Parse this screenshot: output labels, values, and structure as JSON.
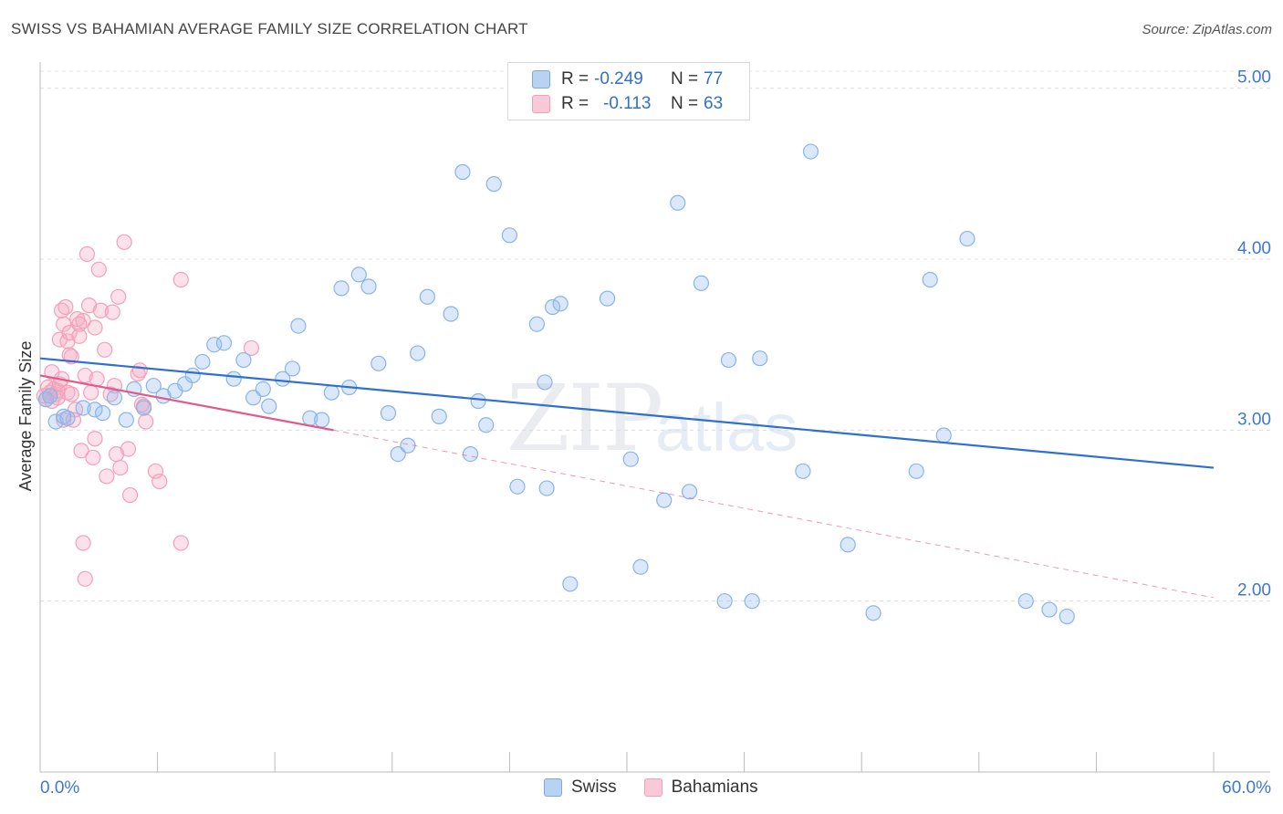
{
  "title": "SWISS VS BAHAMIAN AVERAGE FAMILY SIZE CORRELATION CHART",
  "source": "Source: ZipAtlas.com",
  "watermark": {
    "zip": "ZIP",
    "atlas": "atlas"
  },
  "legend": {
    "swiss": {
      "r_label": "R =",
      "r_value": "-0.249",
      "n_label": "N =",
      "n_value": "77"
    },
    "bahamians": {
      "r_label": "R =",
      "r_value": "-0.113",
      "n_label": "N =",
      "n_value": "63"
    }
  },
  "bottom_legend": {
    "swiss": "Swiss",
    "bahamians": "Bahamians"
  },
  "colors": {
    "swiss": "#8ab4e8",
    "swiss_line": "#2f6fd0",
    "bahamians": "#f2a0b8",
    "bahamians_line": "#e05a8a",
    "tick_label": "#3f78d0"
  },
  "chart_data": {
    "type": "scatter",
    "title": "SWISS VS BAHAMIAN AVERAGE FAMILY SIZE CORRELATION CHART",
    "xlabel": "",
    "ylabel": "Average Family Size",
    "xlim": [
      0,
      60
    ],
    "ylim": [
      1.0,
      5.1
    ],
    "x_tick_labels": [
      "0.0%",
      "60.0%"
    ],
    "y_ticks": [
      2.0,
      3.0,
      4.0,
      5.0
    ],
    "y_tick_labels": [
      "2.00",
      "3.00",
      "4.00",
      "5.00"
    ],
    "series": [
      {
        "name": "Swiss",
        "trend": {
          "x": [
            0,
            60
          ],
          "y": [
            3.42,
            2.78
          ]
        },
        "points": [
          [
            0.3,
            3.18
          ],
          [
            0.5,
            3.2
          ],
          [
            0.8,
            3.05
          ],
          [
            1.2,
            3.08
          ],
          [
            1.4,
            3.07
          ],
          [
            2.2,
            3.13
          ],
          [
            2.8,
            3.12
          ],
          [
            3.2,
            3.1
          ],
          [
            3.8,
            3.19
          ],
          [
            4.4,
            3.06
          ],
          [
            4.8,
            3.24
          ],
          [
            5.3,
            3.13
          ],
          [
            5.8,
            3.26
          ],
          [
            6.3,
            3.2
          ],
          [
            6.9,
            3.23
          ],
          [
            7.4,
            3.27
          ],
          [
            7.8,
            3.32
          ],
          [
            8.3,
            3.4
          ],
          [
            8.9,
            3.5
          ],
          [
            9.4,
            3.51
          ],
          [
            9.9,
            3.3
          ],
          [
            10.4,
            3.41
          ],
          [
            10.9,
            3.19
          ],
          [
            11.4,
            3.24
          ],
          [
            11.7,
            3.14
          ],
          [
            12.4,
            3.3
          ],
          [
            12.9,
            3.36
          ],
          [
            13.2,
            3.61
          ],
          [
            13.8,
            3.07
          ],
          [
            14.4,
            3.06
          ],
          [
            14.9,
            3.22
          ],
          [
            15.4,
            3.83
          ],
          [
            15.8,
            3.25
          ],
          [
            16.3,
            3.91
          ],
          [
            16.8,
            3.84
          ],
          [
            17.3,
            3.39
          ],
          [
            17.8,
            3.1
          ],
          [
            18.3,
            2.86
          ],
          [
            18.8,
            2.91
          ],
          [
            19.3,
            3.45
          ],
          [
            19.8,
            3.78
          ],
          [
            20.4,
            3.08
          ],
          [
            21.0,
            3.68
          ],
          [
            21.6,
            4.51
          ],
          [
            22.0,
            2.86
          ],
          [
            22.4,
            3.17
          ],
          [
            22.8,
            3.03
          ],
          [
            23.2,
            4.44
          ],
          [
            24.0,
            4.14
          ],
          [
            24.4,
            2.67
          ],
          [
            25.4,
            3.62
          ],
          [
            25.8,
            3.28
          ],
          [
            25.9,
            2.66
          ],
          [
            26.2,
            3.72
          ],
          [
            26.6,
            3.74
          ],
          [
            27.1,
            2.1
          ],
          [
            29.0,
            3.77
          ],
          [
            30.2,
            2.83
          ],
          [
            30.7,
            2.2
          ],
          [
            31.9,
            2.59
          ],
          [
            32.6,
            4.33
          ],
          [
            33.2,
            2.64
          ],
          [
            33.8,
            3.86
          ],
          [
            35.0,
            2.0
          ],
          [
            35.2,
            3.41
          ],
          [
            36.4,
            2.0
          ],
          [
            36.8,
            3.42
          ],
          [
            39.0,
            2.76
          ],
          [
            39.4,
            4.63
          ],
          [
            41.3,
            2.33
          ],
          [
            42.6,
            1.93
          ],
          [
            44.8,
            2.76
          ],
          [
            45.5,
            3.88
          ],
          [
            46.2,
            2.97
          ],
          [
            47.4,
            4.12
          ],
          [
            50.4,
            2.0
          ],
          [
            51.6,
            1.95
          ],
          [
            52.5,
            1.91
          ]
        ]
      },
      {
        "name": "Bahamians",
        "trend": {
          "x": [
            0,
            15
          ],
          "y": [
            3.32,
            3.0
          ]
        },
        "trend_extension": {
          "x": [
            15,
            60
          ],
          "y": [
            3.0,
            2.02
          ]
        },
        "points": [
          [
            0.2,
            3.2
          ],
          [
            0.3,
            3.18
          ],
          [
            0.4,
            3.25
          ],
          [
            0.5,
            3.22
          ],
          [
            0.6,
            3.17
          ],
          [
            0.7,
            3.24
          ],
          [
            0.8,
            3.21
          ],
          [
            0.9,
            3.23
          ],
          [
            0.9,
            3.19
          ],
          [
            1.0,
            3.27
          ],
          [
            1.0,
            3.53
          ],
          [
            1.1,
            3.3
          ],
          [
            1.1,
            3.7
          ],
          [
            1.2,
            3.62
          ],
          [
            1.2,
            3.06
          ],
          [
            1.3,
            3.72
          ],
          [
            1.4,
            3.22
          ],
          [
            1.4,
            3.52
          ],
          [
            1.5,
            3.44
          ],
          [
            1.5,
            3.57
          ],
          [
            1.6,
            3.21
          ],
          [
            1.7,
            3.06
          ],
          [
            1.8,
            3.12
          ],
          [
            1.9,
            3.65
          ],
          [
            2.0,
            3.55
          ],
          [
            2.1,
            2.88
          ],
          [
            2.2,
            2.34
          ],
          [
            2.2,
            3.64
          ],
          [
            2.3,
            2.13
          ],
          [
            2.3,
            3.32
          ],
          [
            2.4,
            4.03
          ],
          [
            2.5,
            3.73
          ],
          [
            2.6,
            3.22
          ],
          [
            2.7,
            2.84
          ],
          [
            2.8,
            2.95
          ],
          [
            2.9,
            3.3
          ],
          [
            3.0,
            3.94
          ],
          [
            3.1,
            3.7
          ],
          [
            3.3,
            3.47
          ],
          [
            3.4,
            2.73
          ],
          [
            3.6,
            3.21
          ],
          [
            3.8,
            3.26
          ],
          [
            3.9,
            2.86
          ],
          [
            4.0,
            3.78
          ],
          [
            4.1,
            2.78
          ],
          [
            4.3,
            4.1
          ],
          [
            4.5,
            2.89
          ],
          [
            4.6,
            2.62
          ],
          [
            5.0,
            3.33
          ],
          [
            5.2,
            3.15
          ],
          [
            5.3,
            3.14
          ],
          [
            5.4,
            3.05
          ],
          [
            5.9,
            2.76
          ],
          [
            6.1,
            2.7
          ],
          [
            7.2,
            3.88
          ],
          [
            7.2,
            2.34
          ],
          [
            10.8,
            3.48
          ],
          [
            2.0,
            3.62
          ],
          [
            1.6,
            3.43
          ],
          [
            3.7,
            3.69
          ],
          [
            0.6,
            3.34
          ],
          [
            5.1,
            3.35
          ],
          [
            2.8,
            3.6
          ]
        ]
      }
    ]
  }
}
